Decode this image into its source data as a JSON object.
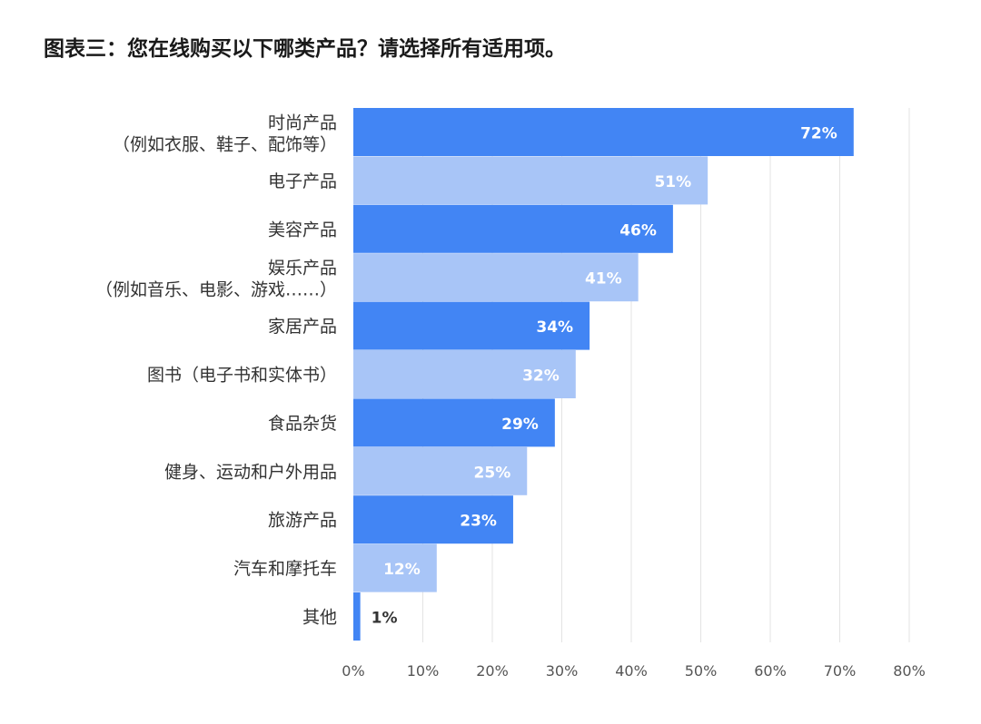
{
  "title": "图表三：您在线购买以下哪类产品？请选择所有适用项。",
  "colors": {
    "dark_bar": "#4285f4",
    "light_bar": "#a8c5f7",
    "label_on_bar": "#ffffff",
    "label_outside": "#333333",
    "grid": "#e3e3e3"
  },
  "chart_data": {
    "type": "bar",
    "orientation": "horizontal",
    "title": "图表三：您在线购买以下哪类产品？请选择所有适用项。",
    "categories": [
      [
        "时尚产品",
        "（例如衣服、鞋子、配饰等）"
      ],
      [
        "电子产品"
      ],
      [
        "美容产品"
      ],
      [
        "娱乐产品",
        "（例如音乐、电影、游戏……）"
      ],
      [
        "家居产品"
      ],
      [
        "图书（电子书和实体书）"
      ],
      [
        "食品杂货"
      ],
      [
        "健身、运动和户外用品"
      ],
      [
        "旅游产品"
      ],
      [
        "汽车和摩托车"
      ],
      [
        "其他"
      ]
    ],
    "values": [
      72,
      51,
      46,
      41,
      34,
      32,
      29,
      25,
      23,
      12,
      1
    ],
    "value_labels": [
      "72%",
      "51%",
      "46%",
      "41%",
      "34%",
      "32%",
      "29%",
      "25%",
      "23%",
      "12%",
      "1%"
    ],
    "bar_shades": [
      "dark",
      "light",
      "dark",
      "light",
      "dark",
      "light",
      "dark",
      "light",
      "dark",
      "light",
      "dark"
    ],
    "xlim": [
      0,
      80
    ],
    "xticks": [
      0,
      10,
      20,
      30,
      40,
      50,
      60,
      70,
      80
    ],
    "xtick_labels": [
      "0%",
      "10%",
      "20%",
      "30%",
      "40%",
      "50%",
      "60%",
      "70%",
      "80%"
    ],
    "grid": true,
    "legend": "none"
  }
}
